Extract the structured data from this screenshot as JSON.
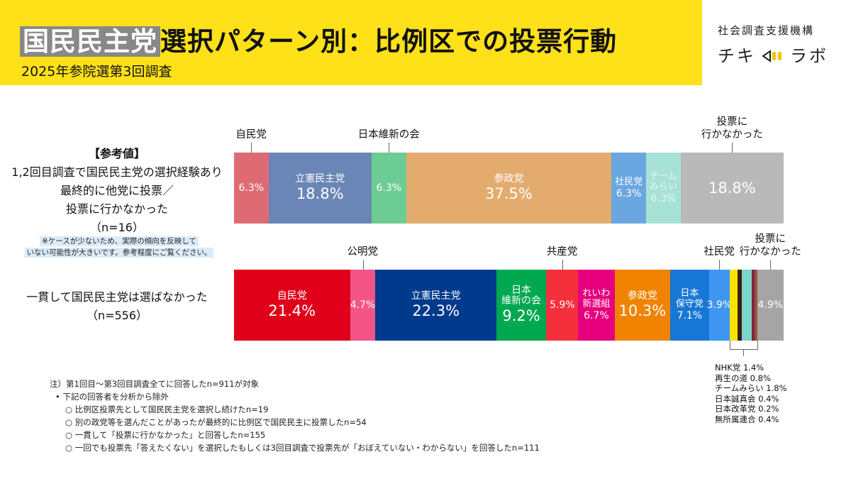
{
  "header": {
    "title_highlight": "国民民主党",
    "title_rest": "選択パターン別：比例区での投票行動",
    "subtitle": "2025年参院選第3回調査",
    "brand_top": "社会調査支援機構",
    "brand_main_left": "チキ",
    "brand_main_right": "ラボ",
    "banner_color": "#ffe11a"
  },
  "rows": {
    "row1": {
      "line1": "【参考値】",
      "line2": "1,2回目調査で国民民主党の選択経験あり",
      "line3": "最終的に他党に投票／",
      "line4": "投票に行かなかった",
      "n": "（n=16）",
      "note_line1": "※ケースが少ないため、実際の傾向を反映して",
      "note_line2": "いない可能性が大きいです。参考程度にご覧ください。"
    },
    "row2": {
      "line1": "一貫して国民民主党は選ばなかった",
      "n": "（n=556）"
    }
  },
  "chart_data": {
    "type": "bar",
    "orientation": "horizontal",
    "stacked": true,
    "title": "国民民主党選択パターン別：比例区での投票行動",
    "categories": [
      "1,2回目調査で国民民主党の選択経験あり 最終的に他党に投票／投票に行かなかった",
      "一貫して国民民主党は選ばなかった"
    ],
    "series_row1": [
      {
        "name": "自民党",
        "inner": "",
        "label": "6.3%",
        "value": 6.3,
        "color": "#de6b74",
        "callout": "自民党"
      },
      {
        "name": "立憲民主党",
        "inner": "立憲民主党",
        "label": "18.8%",
        "value": 18.8,
        "color": "#6a86b6",
        "big": true
      },
      {
        "name": "日本維新の会",
        "inner": "",
        "label": "6.3%",
        "value": 6.3,
        "color": "#6dcc93",
        "callout": "日本維新の会"
      },
      {
        "name": "参政党",
        "inner": "参政党",
        "label": "37.5%",
        "value": 37.5,
        "color": "#e3ac6e",
        "big": true
      },
      {
        "name": "社民党",
        "inner": "社民党",
        "label": "6.3%",
        "value": 6.3,
        "color": "#6aa7e0"
      },
      {
        "name": "チームみらい",
        "inner": "チーム\nみらい",
        "label": "6.3%",
        "value": 6.3,
        "color": "#a7e2d6"
      },
      {
        "name": "投票に行かなかった",
        "inner": "",
        "label": "18.8%",
        "value": 18.8,
        "color": "#b9b9b9",
        "callout": "投票に\n行かなかった",
        "big": true
      }
    ],
    "series_row2": [
      {
        "name": "自民党",
        "inner": "自民党",
        "label": "21.4%",
        "value": 21.4,
        "color": "#e0001a",
        "big": true
      },
      {
        "name": "公明党",
        "inner": "",
        "label": "4.7%",
        "value": 4.7,
        "color": "#f25586",
        "callout": "公明党"
      },
      {
        "name": "立憲民主党",
        "inner": "立憲民主党",
        "label": "22.3%",
        "value": 22.3,
        "color": "#003a8c",
        "big": true
      },
      {
        "name": "日本維新の会",
        "inner": "日本\n維新の会",
        "label": "9.2%",
        "value": 9.2,
        "color": "#00a850",
        "big": true
      },
      {
        "name": "共産党",
        "inner": "",
        "label": "5.9%",
        "value": 5.9,
        "color": "#f5303d",
        "callout": "共産党"
      },
      {
        "name": "れいわ新選組",
        "inner": "れいわ\n新選組",
        "label": "6.7%",
        "value": 6.7,
        "color": "#e6007e"
      },
      {
        "name": "参政党",
        "inner": "参政党",
        "label": "10.3%",
        "value": 10.3,
        "color": "#f08300",
        "big": true
      },
      {
        "name": "日本保守党",
        "inner": "日本\n保守党",
        "label": "7.1%",
        "value": 7.1,
        "color": "#1877d4"
      },
      {
        "name": "社民党",
        "inner": "",
        "label": "3.9%",
        "value": 3.9,
        "color": "#3f96f0",
        "callout": "社民党"
      },
      {
        "name": "NHK党",
        "inner": "",
        "label": "",
        "value": 1.4,
        "color": "#f5e600"
      },
      {
        "name": "再生の道",
        "inner": "",
        "label": "",
        "value": 0.8,
        "color": "#3b1c1c"
      },
      {
        "name": "チームみらい",
        "inner": "",
        "label": "",
        "value": 1.8,
        "color": "#7cd6c9"
      },
      {
        "name": "日本誠真会",
        "inner": "",
        "label": "",
        "value": 0.4,
        "color": "#8a2040"
      },
      {
        "name": "日本改革党",
        "inner": "",
        "label": "",
        "value": 0.2,
        "color": "#2c3e8c"
      },
      {
        "name": "無所属連合",
        "inner": "",
        "label": "",
        "value": 0.4,
        "color": "#a0522d"
      },
      {
        "name": "投票に行かなかった",
        "inner": "",
        "label": "4.9%",
        "value": 4.9,
        "color": "#a5a5a5",
        "callout": "投票に\n行かなかった"
      }
    ],
    "minor_parties": [
      "NHK党 1.4%",
      "再生の道 0.8%",
      "チームみらい 1.8%",
      "日本誠真会 0.4%",
      "日本改革党 0.2%",
      "無所属連合 0.4%"
    ]
  },
  "footnotes": {
    "l1": "注）第1回目～第3回目調査全てに回答したn=911が対象",
    "l2": "• 下記の回答者を分析から除外",
    "l3a": "○ 比例区投票先として国民民主党を選択し続けたn=19",
    "l3b": "○ 別の政党等を選んだことがあったが最終的に比例区で国民民主に投票したn=54",
    "l3c": "○ 一貫して「投票に行かなかった」と回答したn=155",
    "l3d": "○ 一回でも投票先「答えたくない」を選択したもしくは3回目調査で投票先が「おぼえていない・わからない」を回答したn=111"
  }
}
